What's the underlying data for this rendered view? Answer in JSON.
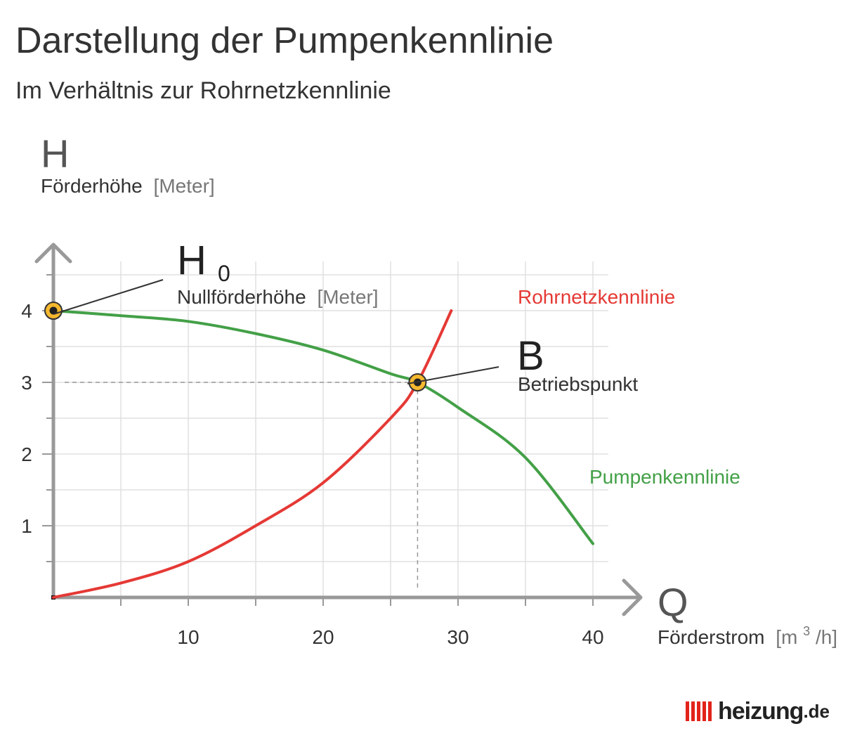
{
  "header": {
    "title": "Darstellung der Pumpenkennlinie",
    "subtitle": "Im Verhältnis zur Rohrnetzkennlinie"
  },
  "chart_data": {
    "type": "line",
    "y_axis": {
      "symbol": "H",
      "label": "Förderhöhe",
      "unit": "[Meter]",
      "ylim": [
        0,
        4.5
      ],
      "ticks": [
        1,
        2,
        3,
        4
      ]
    },
    "x_axis": {
      "symbol": "Q",
      "label": "Förderstrom",
      "unit_prefix": "[m",
      "unit_sup": "3",
      "unit_suffix": "/h]",
      "xlim": [
        0,
        42
      ],
      "ticks": [
        10,
        20,
        30,
        40
      ]
    },
    "grid": true,
    "series": [
      {
        "name": "Pumpenkennlinie",
        "color": "#43a047",
        "x": [
          0,
          5,
          10,
          15,
          20,
          25,
          27,
          30,
          35,
          40
        ],
        "y": [
          4.0,
          3.93,
          3.85,
          3.68,
          3.45,
          3.12,
          3.0,
          2.65,
          1.95,
          0.75
        ]
      },
      {
        "name": "Rohrnetzkennlinie",
        "color": "#e53935",
        "x": [
          0,
          5,
          10,
          15,
          20,
          25,
          27,
          29.5
        ],
        "y": [
          0,
          0.2,
          0.5,
          1.0,
          1.6,
          2.5,
          3.0,
          4.0
        ]
      }
    ],
    "annotations": {
      "h0": {
        "symbol": "H",
        "subscript": "0",
        "label": "Nullförderhöhe",
        "unit": "[Meter]",
        "x": 0,
        "y": 4.0
      },
      "b": {
        "symbol": "B",
        "label": "Betriebspunkt",
        "x": 27,
        "y": 3.0
      }
    },
    "colors": {
      "marker_fill": "#f5b82e",
      "marker_center": "#222222",
      "axis": "#999999",
      "grid": "#e0e0e0"
    }
  },
  "logo": {
    "text": "heizung",
    "tld": ".de"
  }
}
